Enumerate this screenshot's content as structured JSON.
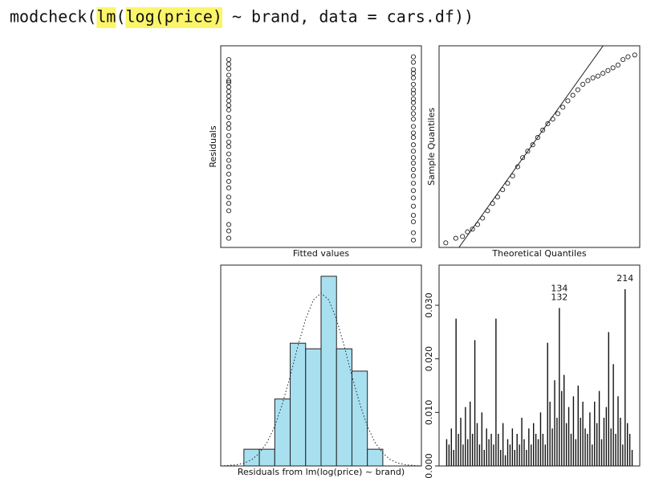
{
  "code": {
    "tokens": [
      {
        "text": "modcheck(",
        "color": "#22309a",
        "highlight": false
      },
      {
        "text": "lm",
        "color": "#111111",
        "highlight": true
      },
      {
        "text": "(",
        "color": "#111111",
        "highlight": false
      },
      {
        "text": "log(price)",
        "color": "#111111",
        "highlight": true
      },
      {
        "text": " ~ brand, ",
        "color": "#111111",
        "highlight": false
      },
      {
        "text": "data",
        "color": "#3a9fb0",
        "highlight": false
      },
      {
        "text": " = cars.df))",
        "color": "#111111",
        "highlight": false
      }
    ]
  },
  "chart_data": [
    {
      "type": "scatter",
      "xlabel": "Fitted values",
      "ylabel": "Residuals",
      "xlim": [
        0,
        1
      ],
      "ylim": [
        -1.1,
        1.1
      ],
      "color": "#222222",
      "x": [
        0.04,
        0.04,
        0.04,
        0.04,
        0.04,
        0.04,
        0.04,
        0.04,
        0.04,
        0.04,
        0.04,
        0.04,
        0.04,
        0.04,
        0.04,
        0.04,
        0.04,
        0.04,
        0.04,
        0.04,
        0.04,
        0.04,
        0.04,
        0.04,
        0.04,
        0.04,
        0.04,
        0.04,
        0.04,
        0.04,
        0.96,
        0.96,
        0.96,
        0.96,
        0.96,
        0.96,
        0.96,
        0.96,
        0.96,
        0.96,
        0.96,
        0.96,
        0.96,
        0.96,
        0.96,
        0.96,
        0.96,
        0.96,
        0.96,
        0.96,
        0.96,
        0.96,
        0.96,
        0.96,
        0.96,
        0.96,
        0.96,
        0.96,
        0.96,
        0.96
      ],
      "y": [
        0.95,
        0.9,
        0.85,
        0.78,
        0.72,
        0.7,
        0.65,
        0.6,
        0.55,
        0.5,
        0.45,
        0.4,
        0.32,
        0.25,
        0.2,
        0.12,
        0.05,
        0,
        -0.08,
        -0.15,
        -0.22,
        -0.3,
        -0.38,
        -0.45,
        -0.55,
        -0.62,
        -0.7,
        -0.85,
        -0.92,
        -1.0,
        0.98,
        0.92,
        0.84,
        0.8,
        0.75,
        0.68,
        0.62,
        0.58,
        0.52,
        0.48,
        0.42,
        0.36,
        0.3,
        0.22,
        0.15,
        0.1,
        0.02,
        -0.05,
        -0.12,
        -0.18,
        -0.25,
        -0.32,
        -0.4,
        -0.48,
        -0.56,
        -0.65,
        -0.75,
        -0.82,
        -0.94,
        -1.02
      ]
    },
    {
      "type": "scatter",
      "xlabel": "Theoretical Quantiles",
      "ylabel": "Sample Quantiles",
      "xlim": [
        -3,
        3
      ],
      "ylim": [
        -1.1,
        1.1
      ],
      "color": "#222222",
      "x": [
        -2.8,
        -2.5,
        -2.3,
        -2.15,
        -2.0,
        -1.85,
        -1.7,
        -1.55,
        -1.4,
        -1.25,
        -1.1,
        -0.95,
        -0.8,
        -0.65,
        -0.5,
        -0.35,
        -0.2,
        -0.05,
        0.1,
        0.25,
        0.4,
        0.55,
        0.7,
        0.85,
        1.0,
        1.15,
        1.3,
        1.45,
        1.6,
        1.75,
        1.9,
        2.05,
        2.2,
        2.35,
        2.5,
        2.65,
        2.85
      ],
      "y": [
        -1.05,
        -1.0,
        -0.98,
        -0.93,
        -0.9,
        -0.85,
        -0.78,
        -0.7,
        -0.62,
        -0.55,
        -0.47,
        -0.4,
        -0.32,
        -0.22,
        -0.12,
        -0.05,
        0.02,
        0.1,
        0.18,
        0.25,
        0.3,
        0.36,
        0.43,
        0.5,
        0.56,
        0.62,
        0.68,
        0.72,
        0.75,
        0.77,
        0.8,
        0.83,
        0.86,
        0.89,
        0.95,
        0.98,
        1.0
      ],
      "line": {
        "x": [
          -2.6,
          2.1
        ],
        "y": [
          -1.2,
          1.2
        ]
      }
    },
    {
      "type": "histogram",
      "xlabel": "Residuals from lm(log(price) ~ brand)",
      "xlim": [
        -1.3,
        1.3
      ],
      "ylim": [
        0,
        36
      ],
      "color": "#a8e0f0",
      "bins": [
        -1.0,
        -0.8,
        -0.6,
        -0.4,
        -0.2,
        0,
        0.2,
        0.4,
        0.6,
        0.8
      ],
      "counts": [
        3,
        3,
        12,
        22,
        21,
        34,
        21,
        17,
        3
      ],
      "curve": {
        "x": [
          -1.3,
          -1.2,
          -1.1,
          -1.0,
          -0.9,
          -0.8,
          -0.7,
          -0.6,
          -0.5,
          -0.4,
          -0.3,
          -0.2,
          -0.1,
          0,
          0.1,
          0.2,
          0.3,
          0.4,
          0.5,
          0.6,
          0.7,
          0.8,
          0.9,
          1.0,
          1.1,
          1.2,
          1.3
        ],
        "y": [
          0,
          0.1,
          0.2,
          0.5,
          1.1,
          2.3,
          4.2,
          7.1,
          11.2,
          16.1,
          21.5,
          26.3,
          29.76,
          31,
          29.76,
          26.3,
          21.5,
          16.1,
          11.2,
          7.1,
          4.2,
          2.3,
          1.1,
          0.5,
          0.2,
          0.1,
          0
        ]
      }
    },
    {
      "type": "bar",
      "ylim": [
        0,
        0.0375
      ],
      "color": "#111111",
      "yticks": [
        {
          "value": 0,
          "label": "0.000"
        },
        {
          "value": 0.01,
          "label": "0.010"
        },
        {
          "value": 0.02,
          "label": "0.020"
        },
        {
          "value": 0.03,
          "label": "0.030"
        }
      ],
      "values": [
        0.005,
        0.004,
        0.007,
        0.003,
        0.0275,
        0.006,
        0.009,
        0.004,
        0.011,
        0.005,
        0.012,
        0.006,
        0.0235,
        0.008,
        0.004,
        0.01,
        0.003,
        0.007,
        0.005,
        0.006,
        0.004,
        0.0275,
        0.006,
        0.003,
        0.008,
        0.002,
        0.005,
        0.004,
        0.007,
        0.003,
        0.006,
        0.004,
        0.009,
        0.005,
        0.003,
        0.007,
        0.004,
        0.008,
        0.006,
        0.005,
        0.01,
        0.006,
        0.004,
        0.023,
        0.012,
        0.007,
        0.016,
        0.009,
        0.0295,
        0.014,
        0.017,
        0.008,
        0.011,
        0.006,
        0.013,
        0.005,
        0.015,
        0.009,
        0.012,
        0.007,
        0.006,
        0.01,
        0.004,
        0.012,
        0.008,
        0.014,
        0.005,
        0.009,
        0.011,
        0.025,
        0.007,
        0.019,
        0.006,
        0.013,
        0.009,
        0.004,
        0.033,
        0.008,
        0.006,
        0.003
      ],
      "annotations": [
        {
          "label": "132",
          "index": 48
        },
        {
          "label": "134",
          "index": 48
        },
        {
          "label": "214",
          "index": 76
        }
      ]
    }
  ]
}
